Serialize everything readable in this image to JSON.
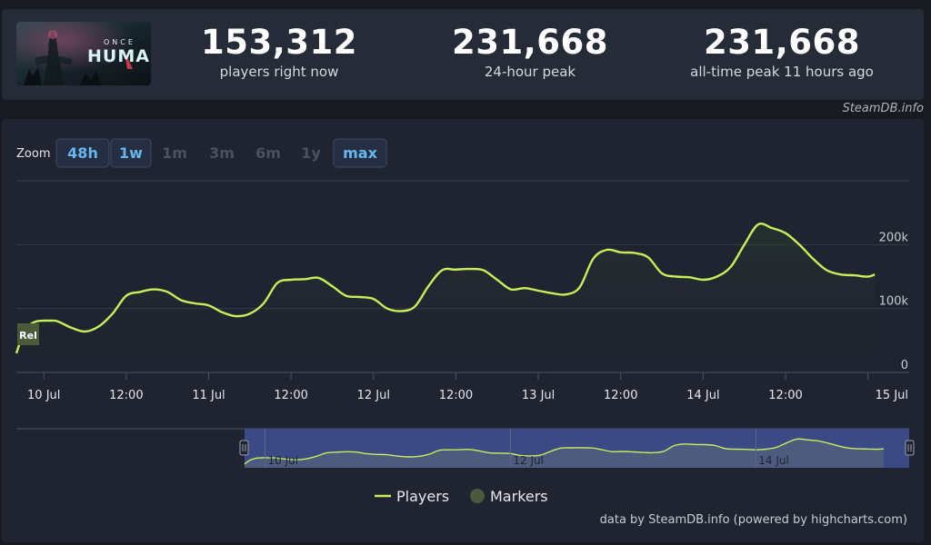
{
  "game": {
    "logo_small": "ONCE",
    "logo_main": "HUMAN"
  },
  "stats": [
    {
      "value": "153,312",
      "label": "players right now"
    },
    {
      "value": "231,668",
      "label": "24-hour peak"
    },
    {
      "value": "231,668",
      "label": "all-time peak 11 hours ago"
    }
  ],
  "credit_top": "SteamDB.info",
  "zoom": {
    "label": "Zoom",
    "buttons": [
      {
        "label": "48h",
        "enabled": true
      },
      {
        "label": "1w",
        "enabled": true
      },
      {
        "label": "1m",
        "enabled": false
      },
      {
        "label": "3m",
        "enabled": false
      },
      {
        "label": "6m",
        "enabled": false
      },
      {
        "label": "1y",
        "enabled": false
      },
      {
        "label": "max",
        "enabled": true
      }
    ]
  },
  "colors": {
    "line": "#c7ef5a",
    "marker": "#4a5a3a",
    "navigator_bg": "#3b4a84"
  },
  "chart_data": {
    "type": "line",
    "x_unit": "hour",
    "xlim": [
      -7,
      123
    ],
    "ylim": [
      0,
      300000
    ],
    "x_tick_labels": [
      "10 Jul",
      "12:00",
      "11 Jul",
      "12:00",
      "12 Jul",
      "12:00",
      "13 Jul",
      "12:00",
      "14 Jul",
      "12:00",
      "15 Jul"
    ],
    "x_tick_hours": [
      -3,
      9,
      21,
      33,
      45,
      57,
      69,
      81,
      93,
      105,
      117
    ],
    "y_ticks": [
      0,
      100000,
      200000
    ],
    "y_tick_labels": [
      "0",
      "100k",
      "200k"
    ],
    "grid": true,
    "legend_position": "bottom-center",
    "series": [
      {
        "name": "Players",
        "x": [
          -7,
          -6,
          -5,
          -4,
          -3,
          -2,
          -1,
          1,
          3,
          5,
          7,
          9,
          11,
          13,
          15,
          17,
          19,
          21,
          23,
          25,
          27,
          29,
          31,
          33,
          35,
          37,
          39,
          41,
          43,
          45,
          47,
          49,
          51,
          53,
          55,
          57,
          59,
          61,
          63,
          65,
          67,
          69,
          71,
          73,
          75,
          77,
          79,
          81,
          83,
          85,
          87,
          89,
          91,
          93,
          95,
          97,
          99,
          101,
          103,
          105,
          107,
          109,
          111,
          113,
          115,
          117,
          118
        ],
        "y": [
          30000,
          60000,
          75000,
          80000,
          81000,
          81000,
          80000,
          70000,
          64000,
          72000,
          92000,
          120000,
          126000,
          130000,
          126000,
          113000,
          108000,
          105000,
          94000,
          88000,
          92000,
          108000,
          140000,
          145000,
          146000,
          148000,
          135000,
          120000,
          118000,
          115000,
          100000,
          96000,
          103000,
          135000,
          160000,
          161000,
          162000,
          160000,
          145000,
          130000,
          132000,
          128000,
          124000,
          122000,
          133000,
          178000,
          192000,
          188000,
          187000,
          180000,
          155000,
          150000,
          149000,
          145000,
          150000,
          165000,
          200000,
          231668,
          226000,
          218000,
          200000,
          178000,
          160000,
          153312,
          152000,
          150000,
          153312
        ],
        "legend": "Players"
      }
    ],
    "markers": [
      {
        "label": "Rel"
      }
    ],
    "marker_legend": "Markers",
    "navigator_tick_labels": [
      "10 Jul",
      "12 Jul",
      "14 Jul"
    ]
  },
  "credit_bottom": "data by SteamDB.info (powered by highcharts.com)"
}
